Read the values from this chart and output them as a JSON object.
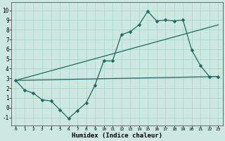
{
  "xlabel": "Humidex (Indice chaleur)",
  "xlim": [
    -0.5,
    23.5
  ],
  "ylim": [
    -1.8,
    10.8
  ],
  "xticks": [
    0,
    1,
    2,
    3,
    4,
    5,
    6,
    7,
    8,
    9,
    10,
    11,
    12,
    13,
    14,
    15,
    16,
    17,
    18,
    19,
    20,
    21,
    22,
    23
  ],
  "yticks": [
    -1,
    0,
    1,
    2,
    3,
    4,
    5,
    6,
    7,
    8,
    9,
    10
  ],
  "bg_color": "#cce8e0",
  "line_color": "#1a6b5e",
  "line1_x": [
    0,
    1,
    2,
    3,
    4,
    5,
    6,
    7,
    8,
    9,
    10,
    11,
    12,
    13,
    14,
    15,
    16,
    17,
    18,
    19,
    20,
    21,
    22,
    23
  ],
  "line1_y": [
    2.8,
    1.8,
    1.5,
    0.8,
    0.7,
    -0.2,
    -1.1,
    -0.3,
    0.5,
    2.3,
    4.8,
    4.8,
    7.5,
    7.8,
    8.5,
    9.9,
    8.9,
    9.0,
    8.9,
    9.0,
    5.9,
    4.3,
    3.2,
    3.2
  ],
  "line2_x": [
    0,
    23
  ],
  "line2_y": [
    2.8,
    3.2
  ],
  "line3_x": [
    0,
    23
  ],
  "line3_y": [
    2.8,
    8.5
  ],
  "markersize": 2.5,
  "linewidth": 0.9,
  "xlabel_fontsize": 6.5,
  "tick_fontsize_x": 4.5,
  "tick_fontsize_y": 5.5
}
